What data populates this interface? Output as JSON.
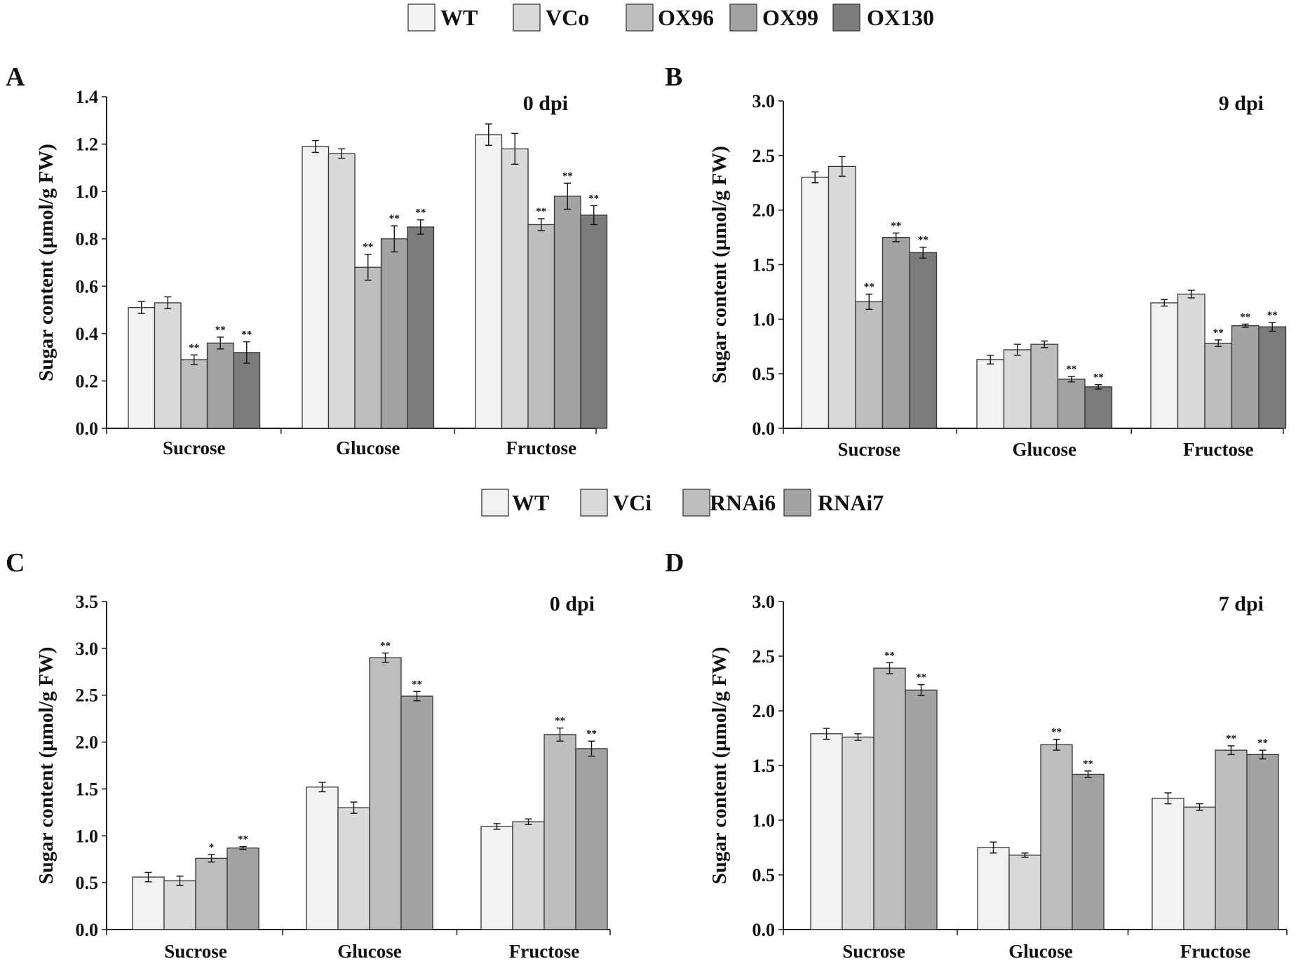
{
  "figure": {
    "legend_top": {
      "entries": [
        {
          "label": "WT",
          "color": "#f2f2f2"
        },
        {
          "label": "VCo",
          "color": "#dadada"
        },
        {
          "label": "OX96",
          "color": "#bebebe"
        },
        {
          "label": "OX99",
          "color": "#a3a3a3"
        },
        {
          "label": "OX130",
          "color": "#7b7b7b"
        }
      ]
    },
    "legend_bottom": {
      "entries": [
        {
          "label": "WT",
          "color": "#f2f2f2"
        },
        {
          "label": "VCi",
          "color": "#dadada"
        },
        {
          "label": "RNAi6",
          "color": "#bebebe"
        },
        {
          "label": "RNAi7",
          "color": "#a3a3a3"
        }
      ]
    }
  },
  "chart_data": [
    {
      "panel": "A",
      "type": "bar",
      "title": "0 dpi",
      "ylabel": "Sugar content (μmol/g FW)",
      "categories": [
        "Sucrose",
        "Glucose",
        "Fructose"
      ],
      "ylim": [
        0,
        1.4
      ],
      "yticks": [
        "0.0",
        "0.2",
        "0.4",
        "0.6",
        "0.8",
        "1.0",
        "1.2",
        "1.4"
      ],
      "series": [
        {
          "name": "WT",
          "values": [
            0.51,
            1.19,
            1.24
          ],
          "errors": [
            0.025,
            0.025,
            0.045
          ],
          "marks": [
            "",
            "",
            ""
          ]
        },
        {
          "name": "VCo",
          "values": [
            0.53,
            1.16,
            1.18
          ],
          "errors": [
            0.025,
            0.02,
            0.065
          ],
          "marks": [
            "",
            "",
            ""
          ]
        },
        {
          "name": "OX96",
          "values": [
            0.29,
            0.68,
            0.86
          ],
          "errors": [
            0.02,
            0.055,
            0.025
          ],
          "marks": [
            "**",
            "**",
            "**"
          ]
        },
        {
          "name": "OX99",
          "values": [
            0.36,
            0.8,
            0.98
          ],
          "errors": [
            0.025,
            0.055,
            0.055
          ],
          "marks": [
            "**",
            "**",
            "**"
          ]
        },
        {
          "name": "OX130",
          "values": [
            0.32,
            0.85,
            0.9
          ],
          "errors": [
            0.045,
            0.03,
            0.04
          ],
          "marks": [
            "**",
            "**",
            "**"
          ]
        }
      ]
    },
    {
      "panel": "B",
      "type": "bar",
      "title": "9 dpi",
      "ylabel": "Sugar content (μmol/g FW)",
      "categories": [
        "Sucrose",
        "Glucose",
        "Fructose"
      ],
      "ylim": [
        0,
        3.0
      ],
      "yticks": [
        "0.0",
        "0.5",
        "1.0",
        "1.5",
        "2.0",
        "2.5",
        "3.0"
      ],
      "series": [
        {
          "name": "WT",
          "values": [
            2.3,
            0.63,
            1.15
          ],
          "errors": [
            0.05,
            0.04,
            0.03
          ],
          "marks": [
            "",
            "",
            ""
          ]
        },
        {
          "name": "VCo",
          "values": [
            2.4,
            0.72,
            1.23
          ],
          "errors": [
            0.09,
            0.05,
            0.035
          ],
          "marks": [
            "",
            "",
            ""
          ]
        },
        {
          "name": "OX96",
          "values": [
            1.16,
            0.77,
            0.78
          ],
          "errors": [
            0.07,
            0.03,
            0.03
          ],
          "marks": [
            "**",
            "",
            "**"
          ]
        },
        {
          "name": "OX99",
          "values": [
            1.75,
            0.45,
            0.94
          ],
          "errors": [
            0.04,
            0.025,
            0.015
          ],
          "marks": [
            "**",
            "**",
            "**"
          ]
        },
        {
          "name": "OX130",
          "values": [
            1.61,
            0.38,
            0.93
          ],
          "errors": [
            0.05,
            0.02,
            0.04
          ],
          "marks": [
            "**",
            "**",
            "**"
          ]
        }
      ]
    },
    {
      "panel": "C",
      "type": "bar",
      "title": "0 dpi",
      "ylabel": "Sugar content (μmol/g FW)",
      "categories": [
        "Sucrose",
        "Glucose",
        "Fructose"
      ],
      "ylim": [
        0,
        3.5
      ],
      "yticks": [
        "0.0",
        "0.5",
        "1.0",
        "1.5",
        "2.0",
        "2.5",
        "3.0",
        "3.5"
      ],
      "series": [
        {
          "name": "WT",
          "values": [
            0.56,
            1.52,
            1.1
          ],
          "errors": [
            0.05,
            0.05,
            0.03
          ],
          "marks": [
            "",
            "",
            ""
          ]
        },
        {
          "name": "VCi",
          "values": [
            0.52,
            1.3,
            1.15
          ],
          "errors": [
            0.05,
            0.06,
            0.03
          ],
          "marks": [
            "",
            "",
            ""
          ]
        },
        {
          "name": "RNAi6",
          "values": [
            0.76,
            2.9,
            2.08
          ],
          "errors": [
            0.04,
            0.05,
            0.07
          ],
          "marks": [
            "*",
            "**",
            "**"
          ]
        },
        {
          "name": "RNAi7",
          "values": [
            0.87,
            2.49,
            1.93
          ],
          "errors": [
            0.015,
            0.05,
            0.08
          ],
          "marks": [
            "**",
            "**",
            "**"
          ]
        }
      ]
    },
    {
      "panel": "D",
      "type": "bar",
      "title": "7 dpi",
      "ylabel": "Sugar content (μmol/g FW)",
      "categories": [
        "Sucrose",
        "Glucose",
        "Fructose"
      ],
      "ylim": [
        0,
        3.0
      ],
      "yticks": [
        "0.0",
        "0.5",
        "1.0",
        "1.5",
        "2.0",
        "2.5",
        "3.0"
      ],
      "series": [
        {
          "name": "WT",
          "values": [
            1.79,
            0.75,
            1.2
          ],
          "errors": [
            0.05,
            0.05,
            0.05
          ],
          "marks": [
            "",
            "",
            ""
          ]
        },
        {
          "name": "VCi",
          "values": [
            1.76,
            0.68,
            1.12
          ],
          "errors": [
            0.03,
            0.02,
            0.03
          ],
          "marks": [
            "",
            "",
            ""
          ]
        },
        {
          "name": "RNAi6",
          "values": [
            2.39,
            1.69,
            1.64
          ],
          "errors": [
            0.05,
            0.05,
            0.04
          ],
          "marks": [
            "**",
            "**",
            "**"
          ]
        },
        {
          "name": "RNAi7",
          "values": [
            2.19,
            1.42,
            1.6
          ],
          "errors": [
            0.05,
            0.03,
            0.04
          ],
          "marks": [
            "**",
            "**",
            "**"
          ]
        }
      ]
    }
  ]
}
